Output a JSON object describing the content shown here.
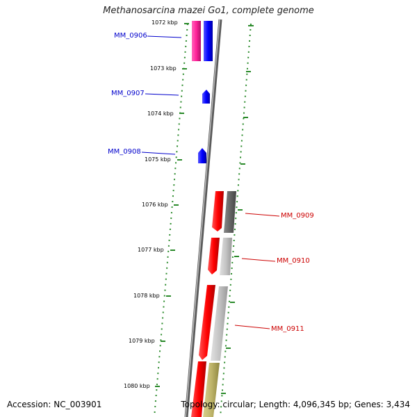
{
  "title": "Methanosarcina mazei Go1, complete genome",
  "footer": {
    "accession": "Accession: NC_003901",
    "summary": "Topology: circular; Length: 4,096,345 bp; Genes: 3,434"
  },
  "colors": {
    "left_labels": "#0000cc",
    "right_labels": "#cc0000",
    "ruler": "#2a8a2a",
    "backbone": "#888888"
  },
  "ruler_ticks": [
    "1072 kbp",
    "1073 kbp",
    "1074 kbp",
    "1075 kbp",
    "1076 kbp",
    "1077 kbp",
    "1078 kbp",
    "1079 kbp",
    "1080 kbp"
  ],
  "left_gene_labels": [
    "MM_0906",
    "MM_0907",
    "MM_0908"
  ],
  "right_gene_labels": [
    "MM_0909",
    "MM_0910",
    "MM_0911"
  ]
}
